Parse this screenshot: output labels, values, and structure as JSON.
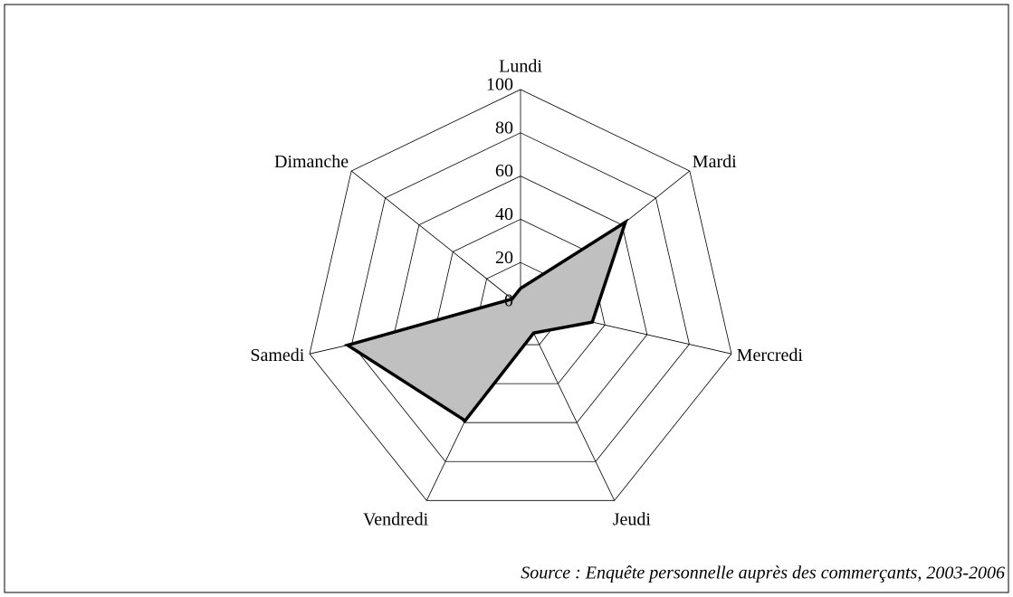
{
  "chart_data": {
    "type": "radar",
    "categories": [
      "Lundi",
      "Mardi",
      "Mercredi",
      "Jeudi",
      "Vendredi",
      "Samedi",
      "Dimanche"
    ],
    "series": [
      {
        "values": [
          8,
          62,
          34,
          14,
          59,
          82,
          5
        ],
        "color": "#c0c0c0"
      }
    ],
    "ylim": [
      0,
      100
    ],
    "yticks": [
      0,
      20,
      40,
      60,
      80,
      100
    ],
    "grid": true,
    "source": "Source : Enquête personnelle auprès des commerçants, 2003-2006"
  }
}
